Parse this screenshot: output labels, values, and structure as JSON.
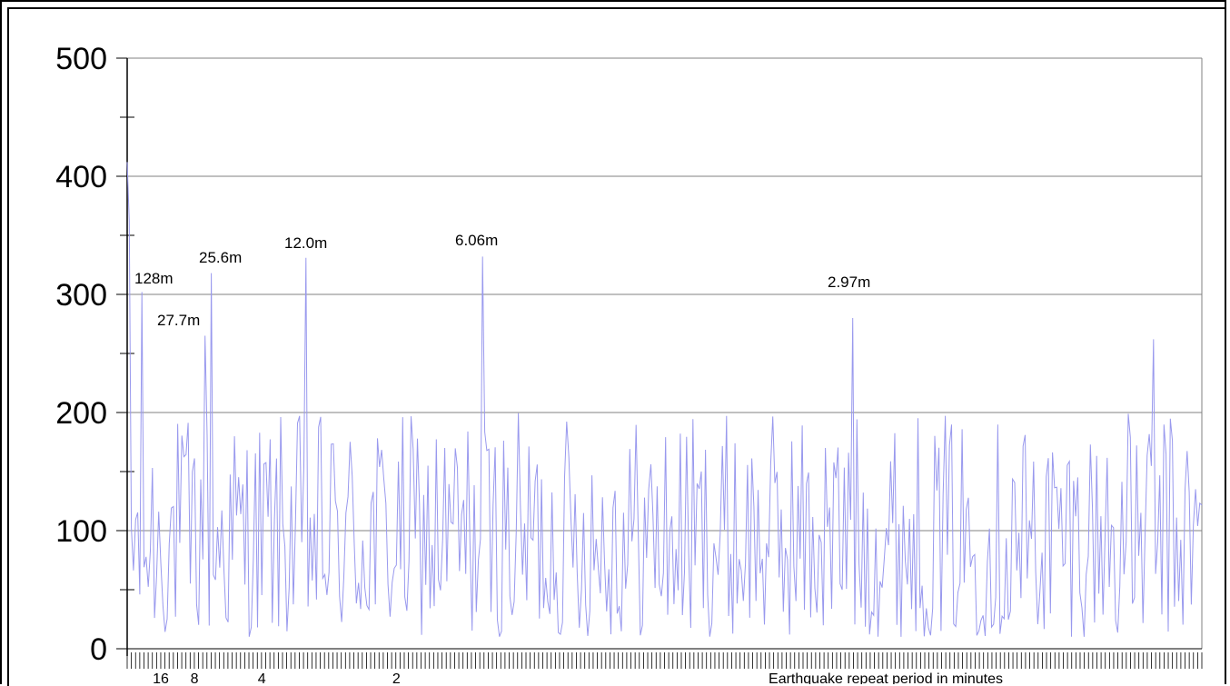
{
  "chart_data": {
    "type": "line",
    "title": "",
    "xlabel": "Earthquake repeat period in minutes",
    "ylabel": "",
    "ylim": [
      0,
      500
    ],
    "yticks": [
      "0",
      "100",
      "200",
      "300",
      "400",
      "500"
    ],
    "yminor_step": 50,
    "xticks": [
      {
        "label": "16",
        "period_min": 16
      },
      {
        "label": "8",
        "period_min": 8
      },
      {
        "label": "4",
        "period_min": 4
      },
      {
        "label": "2",
        "period_min": 2
      }
    ],
    "grid": true,
    "legend": "none",
    "series_color": "#9999ee",
    "annotations": [
      {
        "text": "128m",
        "period_min": 128,
        "value": 305
      },
      {
        "text": "27.7m",
        "period_min": 27.7,
        "value": 265
      },
      {
        "text": "25.6m",
        "period_min": 25.6,
        "value": 318
      },
      {
        "text": "12.0m",
        "period_min": 12.0,
        "value": 331
      },
      {
        "text": "6.06m",
        "period_min": 6.06,
        "value": 332
      },
      {
        "text": "2.97m",
        "period_min": 2.97,
        "value": 280
      }
    ],
    "n_bins": 512,
    "peaks": [
      {
        "bin": 0,
        "value": 412
      },
      {
        "bin": 1,
        "value": 362
      },
      {
        "bin": 7,
        "value": 302
      },
      {
        "bin": 37,
        "value": 265
      },
      {
        "bin": 40,
        "value": 318
      },
      {
        "bin": 85,
        "value": 331
      },
      {
        "bin": 169,
        "value": 332
      },
      {
        "bin": 345,
        "value": 280
      },
      {
        "bin": 488,
        "value": 262
      }
    ]
  }
}
